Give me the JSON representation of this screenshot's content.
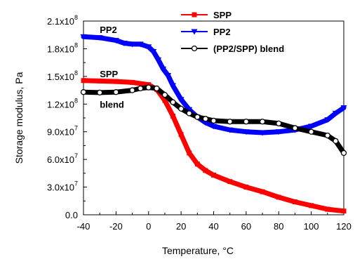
{
  "chart_data": {
    "type": "line",
    "title": "",
    "xlabel": "Temperature, °C",
    "ylabel": "Storage modulus, Pa",
    "xlim": [
      -40,
      120
    ],
    "ylim": [
      0,
      210000000
    ],
    "x_ticks": [
      "-40",
      "-20",
      "0",
      "20",
      "40",
      "60",
      "80",
      "100",
      "120"
    ],
    "y_ticks": [
      {
        "mantissa": "0.0",
        "exp": ""
      },
      {
        "mantissa": "3.0x10",
        "exp": "7"
      },
      {
        "mantissa": "6.0x10",
        "exp": "7"
      },
      {
        "mantissa": "9.0x10",
        "exp": "7"
      },
      {
        "mantissa": "1.2x10",
        "exp": "8"
      },
      {
        "mantissa": "1.5x10",
        "exp": "8"
      },
      {
        "mantissa": "1.8x10",
        "exp": "8"
      },
      {
        "mantissa": "2.1x10",
        "exp": "8"
      }
    ],
    "grid": false,
    "legend_position": "top-right",
    "series": [
      {
        "name": "SPP",
        "color": "#ff0000",
        "marker": "square",
        "x": [
          -40,
          -30,
          -20,
          -10,
          0,
          5,
          10,
          15,
          20,
          25,
          30,
          35,
          40,
          50,
          60,
          70,
          80,
          90,
          100,
          110,
          120
        ],
        "y": [
          145500000,
          145000000,
          144500000,
          143500000,
          141000000,
          136000000,
          124000000,
          107000000,
          87000000,
          67000000,
          55000000,
          48000000,
          43000000,
          36000000,
          30000000,
          25000000,
          19000000,
          14000000,
          10000000,
          6000000,
          4000000
        ]
      },
      {
        "name": "PP2",
        "color": "#0000ff",
        "marker": "triangle-down",
        "x": [
          -40,
          -30,
          -20,
          -15,
          -10,
          -5,
          0,
          3,
          6,
          9,
          12,
          15,
          20,
          25,
          30,
          35,
          40,
          50,
          60,
          70,
          80,
          90,
          100,
          110,
          115,
          120
        ],
        "y": [
          193000000,
          192000000,
          189000000,
          186000000,
          185000000,
          185000000,
          182000000,
          177000000,
          168000000,
          158000000,
          151000000,
          140000000,
          125000000,
          114000000,
          106000000,
          100000000,
          96000000,
          92000000,
          90000000,
          89000000,
          90000000,
          92000000,
          96000000,
          103000000,
          110000000,
          116000000
        ]
      },
      {
        "name": "(PP2/SPP) blend",
        "color": "#000000",
        "marker": "circle-open",
        "x": [
          -40,
          -30,
          -20,
          -10,
          -5,
          0,
          5,
          10,
          15,
          20,
          25,
          30,
          35,
          40,
          50,
          60,
          70,
          80,
          90,
          100,
          110,
          115,
          120
        ],
        "y": [
          133000000,
          132500000,
          133000000,
          135000000,
          137000000,
          138000000,
          137000000,
          130000000,
          122000000,
          115000000,
          110000000,
          106000000,
          104000000,
          102000000,
          101000000,
          101000000,
          101000000,
          99000000,
          94000000,
          90000000,
          86000000,
          80000000,
          67000000
        ]
      }
    ],
    "annotations": [
      {
        "text": "PP2",
        "x": -30,
        "y": 197000000
      },
      {
        "text": "SPP",
        "x": -30,
        "y": 149000000
      },
      {
        "text": "blend",
        "x": -30,
        "y": 116000000
      }
    ]
  }
}
